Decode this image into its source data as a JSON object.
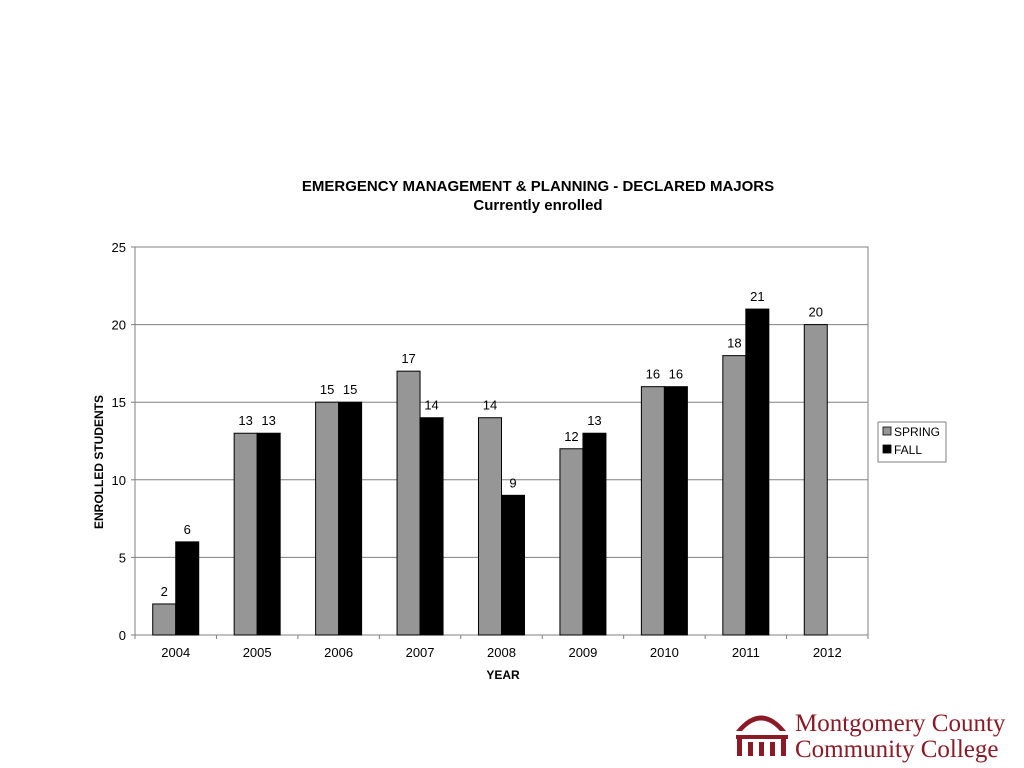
{
  "chart_data": {
    "type": "bar",
    "title": "EMERGENCY MANAGEMENT & PLANNING - DECLARED MAJORS",
    "subtitle": "Currently enrolled",
    "xlabel": "YEAR",
    "ylabel": "ENROLLED STUDENTS",
    "ylim": [
      0,
      25
    ],
    "yticks": [
      "0",
      "5",
      "10",
      "15",
      "20",
      "25"
    ],
    "grid": true,
    "legend_position": "right",
    "categories": [
      "2004",
      "2005",
      "2006",
      "2007",
      "2008",
      "2009",
      "2010",
      "2011",
      "2012"
    ],
    "series": [
      {
        "name": "SPRING",
        "color": "#969696",
        "values": [
          2,
          13,
          15,
          17,
          14,
          12,
          16,
          18,
          20
        ]
      },
      {
        "name": "FALL",
        "color": "#000000",
        "values": [
          6,
          13,
          15,
          14,
          9,
          13,
          16,
          21,
          null
        ]
      }
    ]
  },
  "logo": {
    "line1": "Montgomery County",
    "line2": "Community College",
    "color": "#8b1a26"
  }
}
